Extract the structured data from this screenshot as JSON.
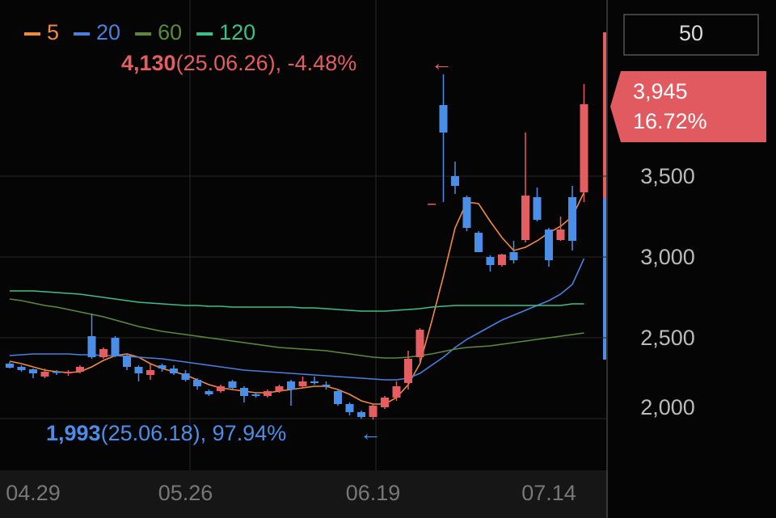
{
  "chart_data": {
    "type": "candlestick",
    "categories": [
      null,
      null,
      "04.29",
      null,
      null,
      null,
      null,
      null,
      null,
      null,
      null,
      null,
      null,
      null,
      null,
      "05.26",
      null,
      null,
      null,
      null,
      null,
      null,
      null,
      null,
      null,
      null,
      null,
      null,
      null,
      null,
      null,
      "06.19",
      null,
      null,
      null,
      null,
      null,
      null,
      null,
      null,
      null,
      null,
      null,
      null,
      null,
      null,
      "07.14",
      null,
      null,
      null
    ],
    "candles": {
      "up_color": "#e35d61",
      "down_color": "#4a8ee8",
      "open": [
        2340,
        2320,
        2305,
        2260,
        2290,
        2280,
        2290,
        2510,
        2380,
        2500,
        2390,
        2320,
        2270,
        2330,
        2310,
        2280,
        2240,
        2170,
        2170,
        2230,
        2190,
        2150,
        2140,
        2170,
        2230,
        2200,
        2230,
        2210,
        2170,
        2090,
        2040,
        2010,
        2070,
        2130,
        2220,
        2380,
        3330,
        3940,
        3500,
        3370,
        3150,
        3000,
        2950,
        3030,
        3105,
        3370,
        3170,
        3105,
        3370,
        3400
      ],
      "high": [
        2350,
        2330,
        2310,
        2310,
        2300,
        2300,
        2330,
        2650,
        2440,
        2510,
        2400,
        2330,
        2340,
        2340,
        2330,
        2300,
        2250,
        2180,
        2210,
        2240,
        2200,
        2160,
        2180,
        2210,
        2240,
        2260,
        2260,
        2230,
        2180,
        2100,
        2050,
        2090,
        2140,
        2230,
        2420,
        2560,
        3330,
        4130,
        3590,
        3380,
        3160,
        3010,
        3020,
        3100,
        3770,
        3430,
        3180,
        3250,
        3440,
        4070
      ],
      "low": [
        2310,
        2290,
        2250,
        2250,
        2270,
        2265,
        2280,
        2370,
        2370,
        2380,
        2300,
        2230,
        2240,
        2290,
        2270,
        2230,
        2180,
        2140,
        2160,
        2180,
        2100,
        2130,
        2130,
        2160,
        2080,
        2190,
        2210,
        2180,
        2080,
        2020,
        1998,
        1993,
        2060,
        2110,
        2180,
        2350,
        3330,
        3340,
        3390,
        3160,
        3030,
        2910,
        2940,
        2960,
        3090,
        3220,
        2940,
        3100,
        3040,
        3340
      ],
      "close": [
        2315,
        2300,
        2280,
        2290,
        2285,
        2290,
        2320,
        2380,
        2430,
        2390,
        2320,
        2280,
        2300,
        2310,
        2280,
        2240,
        2200,
        2150,
        2200,
        2190,
        2140,
        2140,
        2170,
        2200,
        2180,
        2230,
        2220,
        2200,
        2090,
        2040,
        2010,
        2080,
        2130,
        2200,
        2370,
        2550,
        3330,
        3770,
        3440,
        3180,
        3030,
        2950,
        3015,
        2980,
        3380,
        3230,
        2980,
        3170,
        3100,
        3945
      ]
    },
    "series": [
      {
        "name": "5",
        "color": "#f08a3c",
        "values": [
          2355,
          2340,
          2320,
          2300,
          2290,
          2285,
          2290,
          2320,
          2360,
          2390,
          2400,
          2380,
          2340,
          2310,
          2290,
          2270,
          2240,
          2210,
          2190,
          2180,
          2170,
          2160,
          2160,
          2170,
          2180,
          2190,
          2200,
          2200,
          2180,
          2150,
          2110,
          2090,
          2090,
          2130,
          2210,
          2340,
          2600,
          2880,
          3180,
          3340,
          3330,
          3220,
          3120,
          3040,
          3060,
          3100,
          3150,
          3190,
          3250,
          3400
        ]
      },
      {
        "name": "20",
        "color": "#4a7fe0",
        "values": [
          2390,
          2395,
          2400,
          2400,
          2400,
          2400,
          2395,
          2395,
          2390,
          2390,
          2385,
          2380,
          2375,
          2370,
          2360,
          2350,
          2340,
          2330,
          2320,
          2310,
          2300,
          2295,
          2290,
          2285,
          2280,
          2275,
          2270,
          2265,
          2260,
          2255,
          2250,
          2245,
          2240,
          2240,
          2250,
          2280,
          2330,
          2380,
          2440,
          2490,
          2530,
          2570,
          2610,
          2640,
          2670,
          2700,
          2730,
          2770,
          2830,
          2990
        ]
      },
      {
        "name": "60",
        "color": "#5c8a3c",
        "values": [
          2740,
          2730,
          2715,
          2700,
          2690,
          2675,
          2660,
          2645,
          2630,
          2610,
          2590,
          2570,
          2555,
          2540,
          2530,
          2520,
          2510,
          2500,
          2490,
          2480,
          2470,
          2460,
          2450,
          2440,
          2435,
          2430,
          2425,
          2420,
          2410,
          2400,
          2390,
          2380,
          2375,
          2375,
          2380,
          2390,
          2400,
          2415,
          2430,
          2440,
          2445,
          2450,
          2460,
          2470,
          2480,
          2490,
          2500,
          2510,
          2520,
          2530
        ]
      },
      {
        "name": "120",
        "color": "#3cc08a",
        "values": [
          2790,
          2790,
          2790,
          2785,
          2780,
          2775,
          2770,
          2760,
          2750,
          2740,
          2730,
          2720,
          2715,
          2710,
          2705,
          2700,
          2700,
          2695,
          2695,
          2690,
          2690,
          2690,
          2690,
          2690,
          2690,
          2685,
          2685,
          2680,
          2675,
          2670,
          2665,
          2665,
          2665,
          2670,
          2675,
          2680,
          2690,
          2695,
          2700,
          2700,
          2700,
          2700,
          2700,
          2700,
          2700,
          2700,
          2700,
          2700,
          2710,
          2710
        ]
      }
    ],
    "ylim": [
      1690,
      4590
    ],
    "yticks": [
      {
        "value": 2000,
        "label": "2,000"
      },
      {
        "value": 2500,
        "label": "2,500"
      },
      {
        "value": 3000,
        "label": "3,000"
      },
      {
        "value": 3500,
        "label": "3,500"
      }
    ],
    "grid": true,
    "high_annotation": {
      "price": "4,130",
      "detail": "(25.06.26), -4.48%",
      "arrow": "←"
    },
    "low_annotation": {
      "price": "1,993",
      "detail": "(25.06.18), 97.94%",
      "arrow": "←"
    },
    "current_price": {
      "price": "3,945",
      "change": "16.72%"
    },
    "period_box": "50"
  }
}
